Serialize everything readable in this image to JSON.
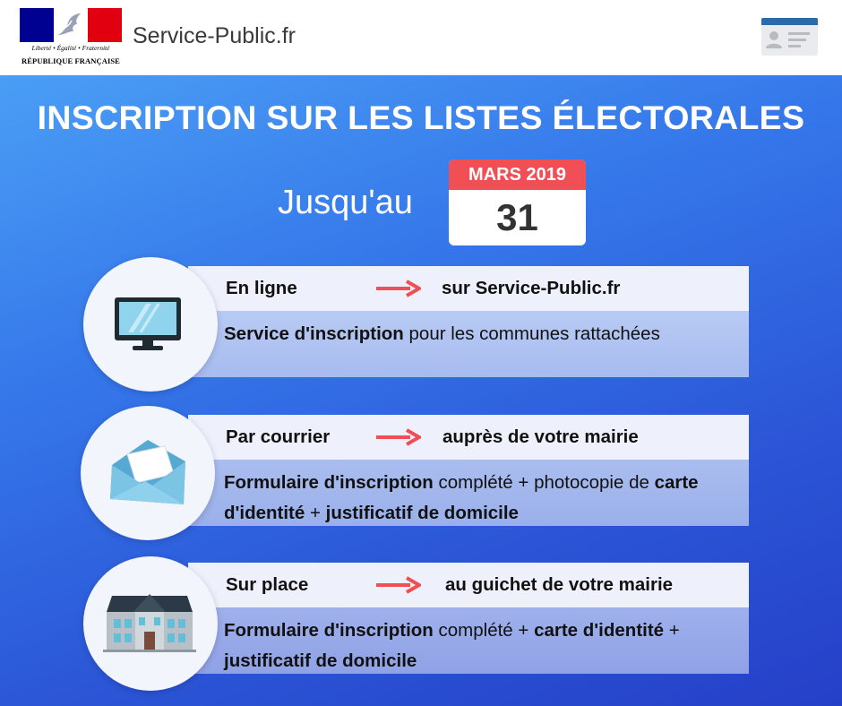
{
  "header": {
    "logo": {
      "motto": "Liberté • Égalité • Fraternité",
      "republic": "RÉPUBLIQUE FRANÇAISE"
    },
    "site_name": "Service-Public.fr",
    "account_icon": "id-card-icon"
  },
  "banner": {
    "title": "INSCRIPTION SUR LES LISTES ÉLECTORALES",
    "until_label": "Jusqu'au",
    "calendar": {
      "month": "MARS 2019",
      "day": "31"
    }
  },
  "methods": [
    {
      "icon": "monitor-icon",
      "mode": "En ligne",
      "target": "sur Service-Public.fr",
      "desc": {
        "b1": "Service d'inscription",
        "t1": " pour les communes rattachées"
      }
    },
    {
      "icon": "envelope-icon",
      "mode": "Par courrier",
      "target": "auprès de votre mairie",
      "desc": {
        "b1": "Formulaire d'inscription",
        "t1": " complété + photocopie de ",
        "b2": "carte d'identité",
        "t2": " + ",
        "b3": "justificatif de domicile"
      }
    },
    {
      "icon": "town-hall-icon",
      "mode": "Sur place",
      "target": "au guichet de votre mairie",
      "desc": {
        "b1": "Formulaire d'inscription",
        "t1": " complété + ",
        "b2": "carte d'identité",
        "t2": " + ",
        "b3": "justificatif de domicile"
      }
    }
  ],
  "colors": {
    "banner_top": "#4a9ef5",
    "banner_bottom": "#2540c8",
    "calendar_header": "#ef4f55",
    "arrow": "#ef4f55",
    "card_top": "#eef1fb"
  }
}
